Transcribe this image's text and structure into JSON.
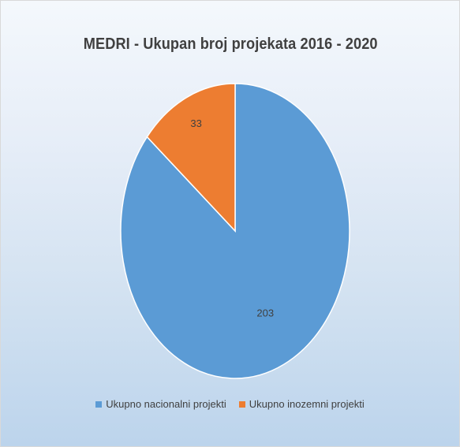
{
  "chart_data": {
    "type": "pie",
    "title": "MEDRI - Ukupan broj projekata 2016 - 2020",
    "slices": [
      {
        "label": "Ukupno nacionalni projekti",
        "value": 203,
        "color": "#5b9bd5"
      },
      {
        "label": "Ukupno inozemni projekti",
        "value": 33,
        "color": "#ed7d31"
      }
    ],
    "legend_position": "bottom"
  }
}
